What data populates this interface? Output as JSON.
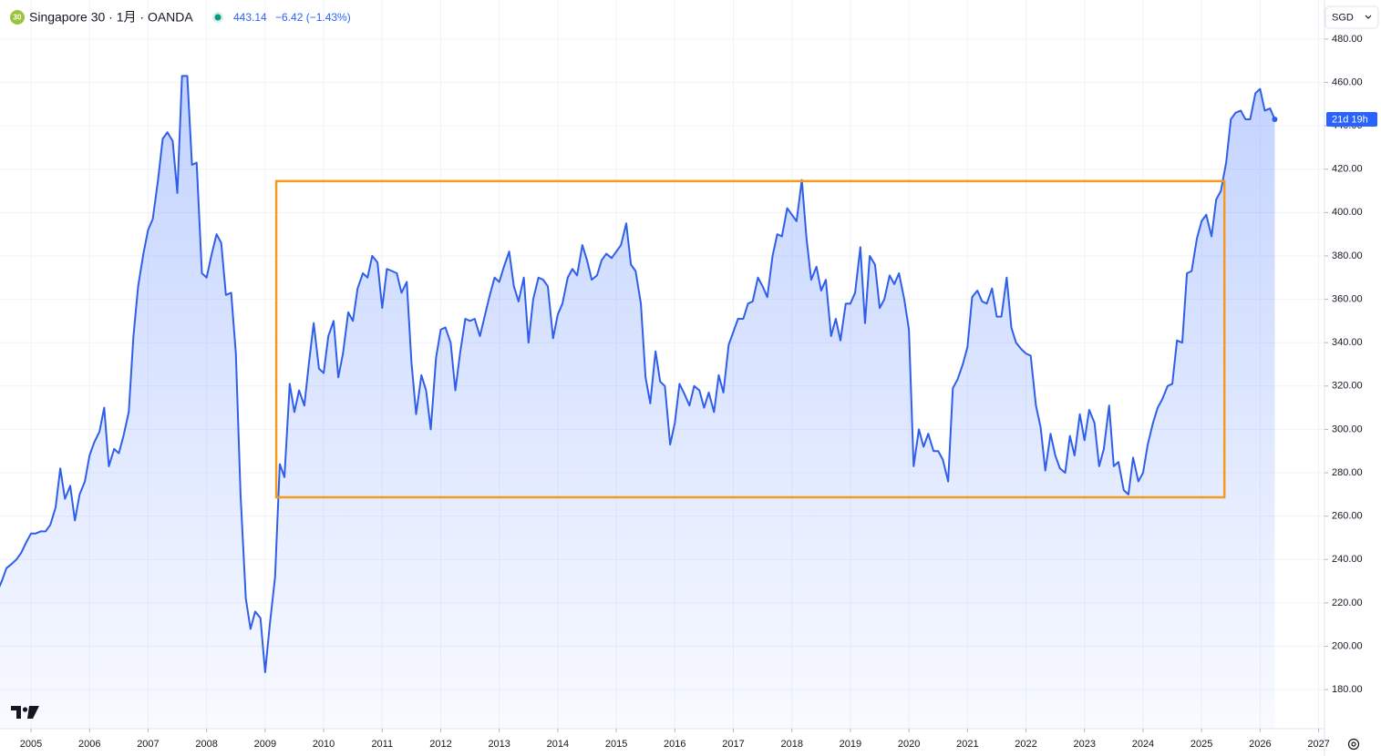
{
  "chart_data": {
    "type": "area",
    "badge": "30",
    "title": "Singapore 30 · 1月 · OANDA",
    "last_price": 443.14,
    "change": "−6.42 (−1.43%)",
    "currency": "SGD",
    "countdown": "21d 19h",
    "color": "#2f5fea",
    "grid": true,
    "xlim": [
      2004.47,
      2027.1
    ],
    "ylim": [
      162,
      498
    ],
    "xticks": [
      2005,
      2006,
      2007,
      2008,
      2009,
      2010,
      2011,
      2012,
      2013,
      2014,
      2015,
      2016,
      2017,
      2018,
      2019,
      2020,
      2021,
      2022,
      2023,
      2024,
      2025,
      2026,
      2027
    ],
    "yticks": [
      {
        "value": 180,
        "label": "180.00"
      },
      {
        "value": 200,
        "label": "200.00"
      },
      {
        "value": 220,
        "label": "220.00"
      },
      {
        "value": 240,
        "label": "240.00"
      },
      {
        "value": 260,
        "label": "260.00"
      },
      {
        "value": 280,
        "label": "280.00"
      },
      {
        "value": 300,
        "label": "300.00"
      },
      {
        "value": 320,
        "label": "320.00"
      },
      {
        "value": 340,
        "label": "340.00"
      },
      {
        "value": 360,
        "label": "360.00"
      },
      {
        "value": 380,
        "label": "380.00"
      },
      {
        "value": 400,
        "label": "400.00"
      },
      {
        "value": 420,
        "label": "420.00"
      },
      {
        "value": 440,
        "label": "440.00"
      },
      {
        "value": 460,
        "label": "460.00"
      },
      {
        "value": 480,
        "label": "480.00"
      }
    ],
    "box": {
      "x": [
        2009.19,
        2025.39
      ],
      "y": [
        268.7,
        414.5
      ],
      "color": "#f39a1f"
    },
    "x": [
      2004.42,
      2004.5,
      2004.58,
      2004.67,
      2004.75,
      2004.83,
      2004.92,
      2005,
      2005.08,
      2005.17,
      2005.25,
      2005.33,
      2005.42,
      2005.5,
      2005.58,
      2005.67,
      2005.75,
      2005.83,
      2005.92,
      2006,
      2006.08,
      2006.17,
      2006.25,
      2006.33,
      2006.42,
      2006.5,
      2006.58,
      2006.67,
      2006.75,
      2006.83,
      2006.92,
      2007,
      2007.08,
      2007.17,
      2007.25,
      2007.33,
      2007.42,
      2007.5,
      2007.58,
      2007.67,
      2007.75,
      2007.83,
      2007.92,
      2008,
      2008.08,
      2008.17,
      2008.25,
      2008.33,
      2008.42,
      2008.5,
      2008.58,
      2008.67,
      2008.75,
      2008.83,
      2008.92,
      2009,
      2009.08,
      2009.17,
      2009.25,
      2009.33,
      2009.42,
      2009.5,
      2009.58,
      2009.67,
      2009.75,
      2009.83,
      2009.92,
      2010,
      2010.08,
      2010.17,
      2010.25,
      2010.33,
      2010.42,
      2010.5,
      2010.58,
      2010.67,
      2010.75,
      2010.83,
      2010.92,
      2011,
      2011.08,
      2011.17,
      2011.25,
      2011.33,
      2011.42,
      2011.5,
      2011.58,
      2011.67,
      2011.75,
      2011.83,
      2011.92,
      2012,
      2012.08,
      2012.17,
      2012.25,
      2012.33,
      2012.42,
      2012.5,
      2012.58,
      2012.67,
      2012.75,
      2012.83,
      2012.92,
      2013,
      2013.08,
      2013.17,
      2013.25,
      2013.33,
      2013.42,
      2013.5,
      2013.58,
      2013.67,
      2013.75,
      2013.83,
      2013.92,
      2014,
      2014.08,
      2014.17,
      2014.25,
      2014.33,
      2014.42,
      2014.5,
      2014.58,
      2014.67,
      2014.75,
      2014.83,
      2014.92,
      2015,
      2015.08,
      2015.17,
      2015.25,
      2015.33,
      2015.42,
      2015.5,
      2015.58,
      2015.67,
      2015.75,
      2015.83,
      2015.92,
      2016,
      2016.08,
      2016.17,
      2016.25,
      2016.33,
      2016.42,
      2016.5,
      2016.58,
      2016.67,
      2016.75,
      2016.83,
      2016.92,
      2017,
      2017.08,
      2017.17,
      2017.25,
      2017.33,
      2017.42,
      2017.5,
      2017.58,
      2017.67,
      2017.75,
      2017.83,
      2017.92,
      2018,
      2018.08,
      2018.17,
      2018.25,
      2018.33,
      2018.42,
      2018.5,
      2018.58,
      2018.67,
      2018.75,
      2018.83,
      2018.92,
      2019,
      2019.08,
      2019.17,
      2019.25,
      2019.33,
      2019.42,
      2019.5,
      2019.58,
      2019.67,
      2019.75,
      2019.83,
      2019.92,
      2020,
      2020.08,
      2020.17,
      2020.25,
      2020.33,
      2020.42,
      2020.5,
      2020.58,
      2020.67,
      2020.75,
      2020.83,
      2020.92,
      2021,
      2021.08,
      2021.17,
      2021.25,
      2021.33,
      2021.42,
      2021.5,
      2021.58,
      2021.67,
      2021.75,
      2021.83,
      2021.92,
      2022,
      2022.08,
      2022.17,
      2022.25,
      2022.33,
      2022.42,
      2022.5,
      2022.58,
      2022.67,
      2022.75,
      2022.83,
      2022.92,
      2023,
      2023.08,
      2023.17,
      2023.25,
      2023.33,
      2023.42,
      2023.5,
      2023.58,
      2023.67,
      2023.75,
      2023.83,
      2023.92,
      2024,
      2024.08,
      2024.17,
      2024.25,
      2024.33,
      2024.42,
      2024.5,
      2024.58,
      2024.67,
      2024.75,
      2024.83,
      2024.92,
      2025,
      2025.08,
      2025.17,
      2025.25,
      2025.33,
      2025.42,
      2025.5,
      2025.58,
      2025.67,
      2025.75,
      2025.83,
      2025.92,
      2026,
      2026.08,
      2026.17,
      2026.25
    ],
    "values": [
      225,
      230,
      236,
      238,
      240,
      243,
      248,
      252,
      252,
      253,
      253,
      256,
      264,
      282,
      268,
      274,
      258,
      270,
      276,
      288,
      294,
      299,
      310,
      283,
      291,
      289,
      297,
      308,
      343,
      366,
      381,
      392,
      397,
      415,
      434,
      437,
      433,
      409,
      463,
      463,
      422,
      423,
      372,
      370,
      380,
      390,
      386,
      362,
      363,
      335,
      270,
      222,
      208,
      216,
      213,
      188,
      210,
      232,
      284,
      278,
      321,
      308,
      318,
      311,
      331,
      349,
      328,
      326,
      343,
      350,
      324,
      335,
      354,
      350,
      365,
      372,
      370,
      380,
      377,
      356,
      374,
      373,
      372,
      363,
      368,
      331,
      307,
      325,
      318,
      300,
      333,
      346,
      347,
      340,
      318,
      335,
      351,
      350,
      351,
      343,
      352,
      361,
      370,
      368,
      375,
      382,
      366,
      359,
      370,
      340,
      360,
      370,
      369,
      366,
      342,
      353,
      358,
      370,
      374,
      371,
      385,
      378,
      369,
      371,
      378,
      381,
      379,
      382,
      385,
      395,
      376,
      373,
      358,
      324,
      312,
      336,
      322,
      320,
      293,
      303,
      321,
      316,
      311,
      320,
      318,
      310,
      317,
      308,
      325,
      317,
      339,
      345,
      351,
      351,
      358,
      359,
      370,
      366,
      361,
      380,
      390,
      389,
      402,
      399,
      396,
      415,
      388,
      369,
      375,
      364,
      369,
      343,
      351,
      341,
      358,
      358,
      363,
      384,
      349,
      380,
      376,
      356,
      360,
      371,
      367,
      372,
      360,
      346,
      283,
      300,
      292,
      298,
      290,
      290,
      286,
      276,
      319,
      323,
      330,
      338,
      361,
      364,
      359,
      358,
      365,
      352,
      352,
      370,
      347,
      340,
      337,
      335,
      334,
      311,
      301,
      281,
      298,
      288,
      282,
      280,
      297,
      288,
      307,
      295,
      309,
      303,
      283,
      291,
      311,
      283,
      285,
      272,
      270,
      287,
      276,
      280,
      293,
      303,
      310,
      314,
      320,
      321,
      341,
      340,
      372,
      373,
      388,
      396,
      399,
      389,
      406,
      410,
      423,
      443,
      446,
      447,
      443,
      443,
      455,
      457,
      447,
      448,
      443
    ]
  }
}
